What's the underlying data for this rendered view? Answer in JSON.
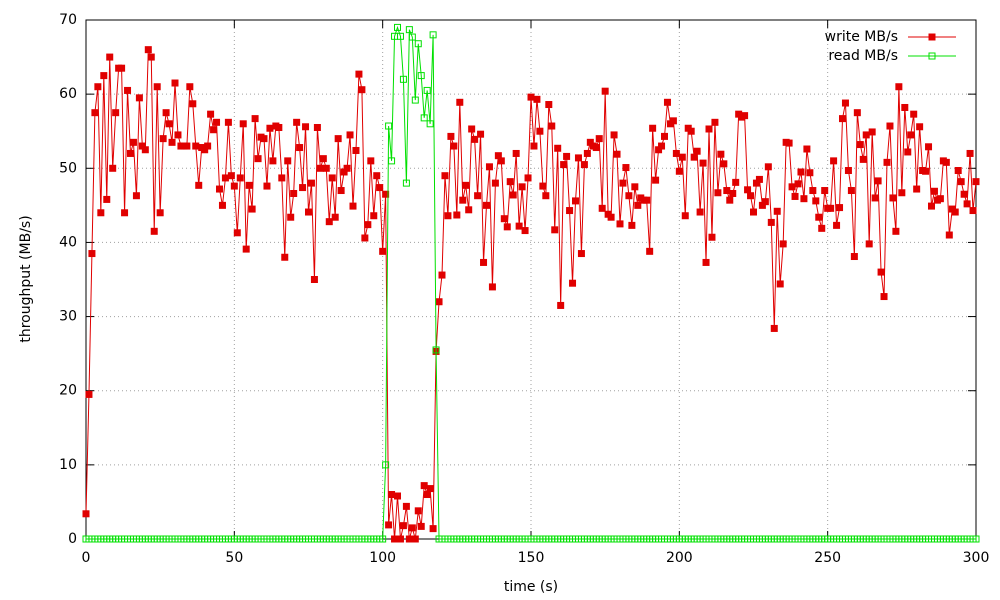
{
  "chart_data": {
    "type": "line",
    "xlabel": "time (s)",
    "ylabel": "throughput (MB/s)",
    "xlim": [
      0,
      300
    ],
    "ylim": [
      0,
      70
    ],
    "xticks": [
      0,
      50,
      100,
      150,
      200,
      250,
      300
    ],
    "yticks": [
      0,
      10,
      20,
      30,
      40,
      50,
      60,
      70
    ],
    "grid": true,
    "legend": "top-right",
    "x": [
      0,
      1,
      2,
      3,
      4,
      5,
      6,
      7,
      8,
      9,
      10,
      11,
      12,
      13,
      14,
      15,
      16,
      17,
      18,
      19,
      20,
      21,
      22,
      23,
      24,
      25,
      26,
      27,
      28,
      29,
      30,
      31,
      32,
      33,
      34,
      35,
      36,
      37,
      38,
      39,
      40,
      41,
      42,
      43,
      44,
      45,
      46,
      47,
      48,
      49,
      50,
      51,
      52,
      53,
      54,
      55,
      56,
      57,
      58,
      59,
      60,
      61,
      62,
      63,
      64,
      65,
      66,
      67,
      68,
      69,
      70,
      71,
      72,
      73,
      74,
      75,
      76,
      77,
      78,
      79,
      80,
      81,
      82,
      83,
      84,
      85,
      86,
      87,
      88,
      89,
      90,
      91,
      92,
      93,
      94,
      95,
      96,
      97,
      98,
      99,
      100,
      101,
      102,
      103,
      104,
      105,
      106,
      107,
      108,
      109,
      110,
      111,
      112,
      113,
      114,
      115,
      116,
      117,
      118,
      119,
      120,
      121,
      122,
      123,
      124,
      125,
      126,
      127,
      128,
      129,
      130,
      131,
      132,
      133,
      134,
      135,
      136,
      137,
      138,
      139,
      140,
      141,
      142,
      143,
      144,
      145,
      146,
      147,
      148,
      149,
      150,
      151,
      152,
      153,
      154,
      155,
      156,
      157,
      158,
      159,
      160,
      161,
      162,
      163,
      164,
      165,
      166,
      167,
      168,
      169,
      170,
      171,
      172,
      173,
      174,
      175,
      176,
      177,
      178,
      179,
      180,
      181,
      182,
      183,
      184,
      185,
      186,
      187,
      188,
      189,
      190,
      191,
      192,
      193,
      194,
      195,
      196,
      197,
      198,
      199,
      200,
      201,
      202,
      203,
      204,
      205,
      206,
      207,
      208,
      209,
      210,
      211,
      212,
      213,
      214,
      215,
      216,
      217,
      218,
      219,
      220,
      221,
      222,
      223,
      224,
      225,
      226,
      227,
      228,
      229,
      230,
      231,
      232,
      233,
      234,
      235,
      236,
      237,
      238,
      239,
      240,
      241,
      242,
      243,
      244,
      245,
      246,
      247,
      248,
      249,
      250,
      251,
      252,
      253,
      254,
      255,
      256,
      257,
      258,
      259,
      260,
      261,
      262,
      263,
      264,
      265,
      266,
      267,
      268,
      269,
      270,
      271,
      272,
      273,
      274,
      275,
      276,
      277,
      278,
      279,
      280,
      281,
      282,
      283,
      284,
      285,
      286,
      287,
      288,
      289,
      290,
      291,
      292,
      293,
      294,
      295,
      296,
      297,
      298,
      299,
      300
    ],
    "series": [
      {
        "name": "write MB/s",
        "color": "#e00000",
        "marker": "filled",
        "values": [
          3.4,
          19.5,
          38.5,
          57.5,
          61,
          44,
          62.5,
          45.8,
          65,
          50,
          57.5,
          63.5,
          63.5,
          44,
          60.5,
          52,
          53.5,
          46.3,
          59.5,
          53,
          52.5,
          66,
          65,
          41.5,
          61,
          44,
          54,
          57.5,
          56,
          53.5,
          61.5,
          54.5,
          53,
          53,
          53,
          61,
          58.7,
          53,
          47.7,
          52.8,
          52.5,
          53,
          57.3,
          55.2,
          56.2,
          47.2,
          45,
          48.7,
          56.2,
          49,
          47.6,
          41.3,
          48.7,
          56,
          39.1,
          47.7,
          44.5,
          56.7,
          51.3,
          54.2,
          54,
          47.6,
          55.4,
          51,
          55.7,
          55.5,
          48.7,
          38,
          51,
          43.4,
          46.6,
          56.2,
          52.8,
          47.4,
          55.6,
          44.1,
          48,
          35,
          55.5,
          50,
          51.3,
          50,
          42.8,
          48.7,
          43.4,
          54,
          47,
          49.5,
          50,
          54.5,
          44.9,
          52.4,
          62.7,
          60.6,
          40.6,
          42.4,
          51,
          43.6,
          49,
          47.4,
          38.8,
          46.5,
          1.9,
          6,
          0,
          5.8,
          0,
          1.8,
          4.4,
          0,
          1.5,
          0,
          3.8,
          1.7,
          7.2,
          6,
          6.8,
          1.4,
          25.3,
          32,
          35.6,
          49,
          43.6,
          54.3,
          53,
          43.7,
          58.9,
          45.7,
          47.7,
          44.4,
          55.3,
          53.9,
          46.3,
          54.6,
          37.3,
          45,
          50.2,
          34,
          48,
          51.7,
          51,
          43.2,
          42.1,
          48.2,
          46.4,
          52,
          42.2,
          47.5,
          41.6,
          48.7,
          59.6,
          53,
          59.3,
          55,
          47.6,
          46.3,
          58.6,
          55.7,
          41.7,
          52.7,
          31.5,
          50.5,
          51.6,
          44.3,
          34.5,
          45.6,
          51.4,
          38.5,
          50.5,
          52,
          53.5,
          53,
          52.8,
          54,
          44.6,
          60.4,
          43.8,
          43.4,
          54.5,
          51.9,
          42.5,
          48,
          50.1,
          46.3,
          42.3,
          47.5,
          45,
          46,
          45.7,
          45.7,
          38.8,
          55.4,
          48.4,
          52.5,
          53,
          54.3,
          58.9,
          56,
          56.4,
          52,
          49.6,
          51.5,
          43.6,
          55.4,
          55,
          51.5,
          52.3,
          44.1,
          50.7,
          37.3,
          55.3,
          40.7,
          56.2,
          46.7,
          51.9,
          50.6,
          47,
          45.7,
          46.6,
          48.1,
          57.3,
          56.9,
          57.1,
          47.1,
          46.3,
          44.1,
          48,
          48.5,
          45,
          45.5,
          50.2,
          42.7,
          28.4,
          44.2,
          34.4,
          39.8,
          53.5,
          53.4,
          47.5,
          46.2,
          47.9,
          49.5,
          45.9,
          52.6,
          49.4,
          47,
          45.6,
          43.4,
          41.9,
          47,
          44.6,
          44.6,
          51,
          42.3,
          44.7,
          56.7,
          58.8,
          49.7,
          47,
          38.1,
          57.5,
          53.2,
          51.2,
          54.5,
          39.8,
          54.9,
          46,
          48.3,
          36,
          32.7,
          50.8,
          55.7,
          46,
          41.5,
          61,
          46.7,
          58.2,
          52.2,
          54.5,
          57.3,
          47.2,
          55.6,
          49.7,
          49.6,
          52.9,
          44.9,
          46.9,
          45.7,
          45.9,
          51,
          50.8,
          41,
          44.5,
          44.1,
          49.7,
          48.2,
          46.5,
          45.2,
          52,
          44.3,
          48.2
        ]
      },
      {
        "name": "read MB/s",
        "color": "#00e000",
        "marker": "hollow",
        "values": [
          0,
          0,
          0,
          0,
          0,
          0,
          0,
          0,
          0,
          0,
          0,
          0,
          0,
          0,
          0,
          0,
          0,
          0,
          0,
          0,
          0,
          0,
          0,
          0,
          0,
          0,
          0,
          0,
          0,
          0,
          0,
          0,
          0,
          0,
          0,
          0,
          0,
          0,
          0,
          0,
          0,
          0,
          0,
          0,
          0,
          0,
          0,
          0,
          0,
          0,
          0,
          0,
          0,
          0,
          0,
          0,
          0,
          0,
          0,
          0,
          0,
          0,
          0,
          0,
          0,
          0,
          0,
          0,
          0,
          0,
          0,
          0,
          0,
          0,
          0,
          0,
          0,
          0,
          0,
          0,
          0,
          0,
          0,
          0,
          0,
          0,
          0,
          0,
          0,
          0,
          0,
          0,
          0,
          0,
          0,
          0,
          0,
          0,
          0,
          0,
          0,
          10,
          55.7,
          51,
          67.8,
          69,
          67.8,
          62,
          48,
          68.7,
          67.7,
          59.2,
          66.8,
          62.5,
          56.8,
          60.5,
          56,
          68,
          25.5,
          0,
          0,
          0,
          0,
          0,
          0,
          0,
          0,
          0,
          0,
          0,
          0,
          0,
          0,
          0,
          0,
          0,
          0,
          0,
          0,
          0,
          0,
          0,
          0,
          0,
          0,
          0,
          0,
          0,
          0,
          0,
          0,
          0,
          0,
          0,
          0,
          0,
          0,
          0,
          0,
          0,
          0,
          0,
          0,
          0,
          0,
          0,
          0,
          0,
          0,
          0,
          0,
          0,
          0,
          0,
          0,
          0,
          0,
          0,
          0,
          0,
          0,
          0,
          0,
          0,
          0,
          0,
          0,
          0,
          0,
          0,
          0,
          0,
          0,
          0,
          0,
          0,
          0,
          0,
          0,
          0,
          0,
          0,
          0,
          0,
          0,
          0,
          0,
          0,
          0,
          0,
          0,
          0,
          0,
          0,
          0,
          0,
          0,
          0,
          0,
          0,
          0,
          0,
          0,
          0,
          0,
          0,
          0,
          0,
          0,
          0,
          0,
          0,
          0,
          0,
          0,
          0,
          0,
          0,
          0,
          0,
          0,
          0,
          0,
          0,
          0,
          0,
          0,
          0,
          0,
          0,
          0,
          0,
          0,
          0,
          0,
          0,
          0,
          0,
          0,
          0,
          0,
          0,
          0,
          0,
          0,
          0,
          0,
          0,
          0,
          0,
          0,
          0,
          0,
          0,
          0,
          0,
          0,
          0,
          0,
          0,
          0,
          0,
          0,
          0,
          0,
          0,
          0,
          0,
          0,
          0,
          0,
          0,
          0,
          0,
          0,
          0,
          0,
          0,
          0,
          0,
          0
        ]
      }
    ]
  }
}
